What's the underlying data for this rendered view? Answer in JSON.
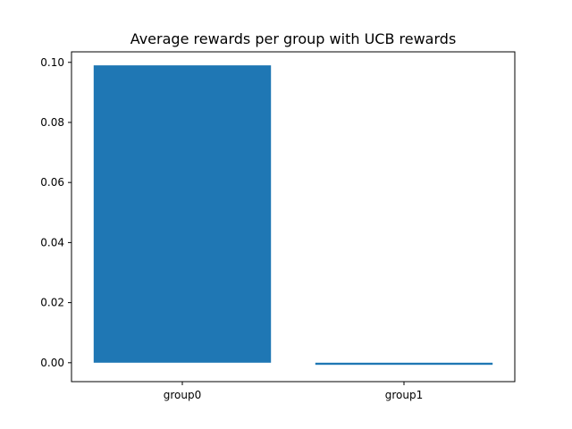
{
  "chart_data": {
    "type": "bar",
    "title": "Average rewards per group with UCB rewards",
    "xlabel": "",
    "ylabel": "",
    "categories": [
      "group0",
      "group1"
    ],
    "values": [
      0.099,
      -0.0007
    ],
    "ylim": [
      -0.0063,
      0.1035
    ],
    "yticks": [
      "0.00",
      "0.02",
      "0.04",
      "0.06",
      "0.08",
      "0.10"
    ],
    "grid": false,
    "bar_color": "#1f77b4"
  }
}
